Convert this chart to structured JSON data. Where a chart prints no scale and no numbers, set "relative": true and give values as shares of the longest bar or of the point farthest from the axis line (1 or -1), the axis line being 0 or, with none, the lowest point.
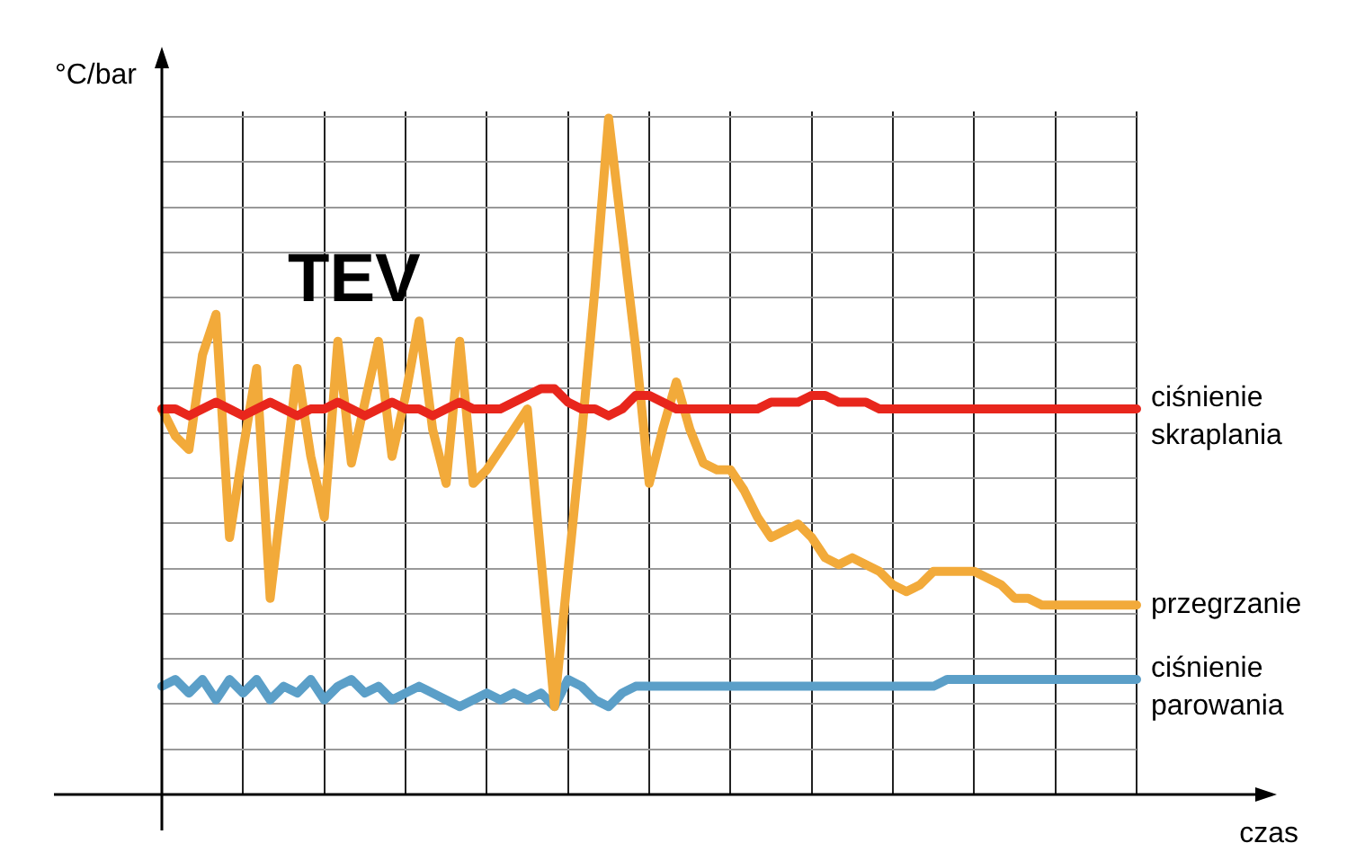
{
  "chart_data": {
    "type": "line",
    "relative": true,
    "ylabel": "°C/bar",
    "xlabel": "czas",
    "annotations": [
      "TEV"
    ],
    "grid": true,
    "marker": "none",
    "line_style": "solid",
    "categories": [
      null,
      null,
      null,
      null,
      null,
      null,
      null,
      null,
      null,
      null,
      null,
      null,
      null,
      null,
      null,
      null,
      null,
      null,
      null,
      null,
      null,
      null,
      null,
      null,
      null,
      null,
      null,
      null,
      null,
      null,
      null,
      null,
      null,
      null,
      null,
      null,
      null,
      null,
      null,
      null,
      null,
      null,
      null,
      null,
      null,
      null,
      null,
      null,
      null,
      null,
      null,
      null,
      null,
      null,
      null,
      null,
      null,
      null,
      null,
      null,
      null,
      null,
      null,
      null,
      null,
      null,
      null,
      null,
      null,
      null,
      null,
      null,
      null
    ],
    "series": [
      {
        "name": "ciśnienie skraplania",
        "color": "#e8261c",
        "values": [
          0.57,
          0.57,
          0.56,
          0.57,
          0.58,
          0.57,
          0.56,
          0.57,
          0.58,
          0.57,
          0.56,
          0.57,
          0.57,
          0.58,
          0.57,
          0.56,
          0.57,
          0.58,
          0.57,
          0.57,
          0.56,
          0.57,
          0.58,
          0.57,
          0.57,
          0.57,
          0.58,
          0.59,
          0.6,
          0.6,
          0.58,
          0.57,
          0.57,
          0.56,
          0.57,
          0.59,
          0.59,
          0.58,
          0.57,
          0.57,
          0.57,
          0.57,
          0.57,
          0.57,
          0.57,
          0.58,
          0.58,
          0.58,
          0.59,
          0.59,
          0.58,
          0.58,
          0.58,
          0.57,
          0.57,
          0.57,
          0.57,
          0.57,
          0.57,
          0.57,
          0.57,
          0.57,
          0.57,
          0.57,
          0.57,
          0.57,
          0.57,
          0.57,
          0.57,
          0.57,
          0.57,
          0.57,
          0.57
        ]
      },
      {
        "name": "przegrzanie",
        "color": "#f2aa3a",
        "values": [
          0.57,
          0.53,
          0.51,
          0.65,
          0.71,
          0.38,
          0.51,
          0.63,
          0.29,
          0.46,
          0.63,
          0.5,
          0.41,
          0.67,
          0.49,
          0.58,
          0.67,
          0.5,
          0.59,
          0.7,
          0.54,
          0.46,
          0.67,
          0.46,
          0.48,
          0.51,
          0.54,
          0.57,
          0.35,
          0.13,
          0.33,
          0.53,
          0.75,
          1,
          0.83,
          0.66,
          0.46,
          0.54,
          0.61,
          0.54,
          0.49,
          0.48,
          0.48,
          0.45,
          0.41,
          0.38,
          0.39,
          0.4,
          0.38,
          0.35,
          0.34,
          0.35,
          0.34,
          0.33,
          0.31,
          0.3,
          0.31,
          0.33,
          0.33,
          0.33,
          0.33,
          0.32,
          0.31,
          0.29,
          0.29,
          0.28,
          0.28,
          0.28,
          0.28,
          0.28,
          0.28,
          0.28,
          0.28
        ]
      },
      {
        "name": "ciśnienie parowania",
        "color": "#5b9fc8",
        "values": [
          0.16,
          0.17,
          0.15,
          0.17,
          0.14,
          0.17,
          0.15,
          0.17,
          0.14,
          0.16,
          0.15,
          0.17,
          0.14,
          0.16,
          0.17,
          0.15,
          0.16,
          0.14,
          0.15,
          0.16,
          0.15,
          0.14,
          0.13,
          0.14,
          0.15,
          0.14,
          0.15,
          0.14,
          0.15,
          0.13,
          0.17,
          0.16,
          0.14,
          0.13,
          0.15,
          0.16,
          0.16,
          0.16,
          0.16,
          0.16,
          0.16,
          0.16,
          0.16,
          0.16,
          0.16,
          0.16,
          0.16,
          0.16,
          0.16,
          0.16,
          0.16,
          0.16,
          0.16,
          0.16,
          0.16,
          0.16,
          0.16,
          0.16,
          0.17,
          0.17,
          0.17,
          0.17,
          0.17,
          0.17,
          0.17,
          0.17,
          0.17,
          0.17,
          0.17,
          0.17,
          0.17,
          0.17,
          0.17
        ]
      }
    ]
  }
}
